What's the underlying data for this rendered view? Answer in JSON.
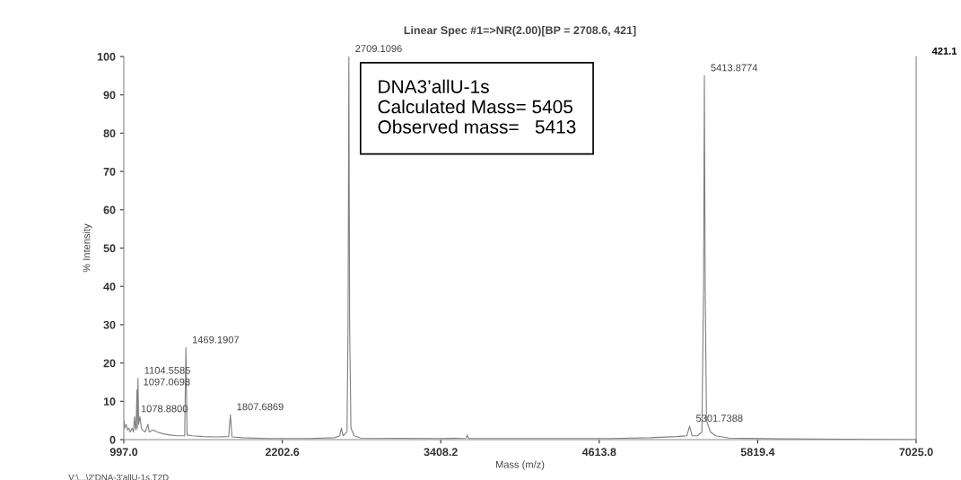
{
  "chart_data": {
    "type": "line",
    "title": "Linear Spec #1=>NR(2.00)[BP = 2708.6, 421]",
    "xlabel": "Mass (m/z)",
    "ylabel": "% Intensity",
    "xlim": [
      997.0,
      7025.0
    ],
    "xticks": [
      {
        "value": 997.0,
        "label": "997.0"
      },
      {
        "value": 2202.6,
        "label": "2202.6"
      },
      {
        "value": 3408.2,
        "label": "3408.2"
      },
      {
        "value": 4613.8,
        "label": "4613.8"
      },
      {
        "value": 5819.4,
        "label": "5819.4"
      },
      {
        "value": 7025.0,
        "label": "7025.0"
      }
    ],
    "ylim": [
      0,
      100
    ],
    "yticks": [
      0,
      10,
      20,
      30,
      40,
      50,
      60,
      70,
      80,
      90,
      100
    ],
    "grid": false,
    "marker": "none",
    "line_style": "solid",
    "series": [
      {
        "color": "#808080",
        "x": [
          997,
          1005,
          1015,
          1025,
          1035,
          1045,
          1060,
          1070,
          1078.88,
          1085,
          1090,
          1097.07,
          1100,
          1104.56,
          1110,
          1120,
          1130,
          1140,
          1160,
          1180,
          1190,
          1220,
          1250,
          1300,
          1350,
          1400,
          1460,
          1469.19,
          1478,
          1520,
          1600,
          1700,
          1795,
          1807.69,
          1820,
          1900,
          2100,
          2400,
          2600,
          2640,
          2652,
          2665,
          2695,
          2703,
          2709.11,
          2715,
          2725,
          2750,
          2800,
          3400,
          3600,
          3610,
          3620,
          4700,
          5000,
          5200,
          5280,
          5301.74,
          5320,
          5360,
          5395,
          5408,
          5413.88,
          5420,
          5430,
          5460,
          5500,
          5600,
          6000,
          7025
        ],
        "values": [
          5,
          3,
          4,
          2.5,
          3,
          2,
          3,
          2,
          6,
          3,
          2.5,
          13,
          3,
          16,
          4,
          6,
          3,
          2.5,
          2,
          4,
          2,
          2.5,
          2,
          1.5,
          1.2,
          1,
          1,
          24,
          1.2,
          1,
          0.8,
          0.7,
          0.8,
          6.5,
          0.7,
          0.5,
          0.3,
          0.3,
          0.5,
          1,
          3,
          1,
          2,
          30,
          100,
          30,
          3,
          1,
          0.4,
          0.3,
          0.4,
          1.2,
          0.3,
          0.3,
          0.5,
          0.8,
          1,
          3.5,
          1,
          1,
          2,
          40,
          95,
          40,
          5,
          2,
          1,
          0.4,
          0.2,
          0
        ]
      }
    ],
    "annotations": [
      "DNA3’allU-1s\nCalculated Mass= 5405\nObserved mass=   5413",
      "421.1",
      "V:\\...\\2'DNA-3'allU-1s.T2D",
      {
        "text": "2709.1096",
        "x": 2709.11,
        "y": 100
      },
      {
        "text": "5413.8774",
        "x": 5413.88,
        "y": 95
      },
      {
        "text": "1469.1907",
        "x": 1469.19,
        "y": 24
      },
      {
        "text": "1104.5585",
        "x": 1104.56,
        "y": 16
      },
      {
        "text": "1097.0693",
        "x": 1097.07,
        "y": 13
      },
      {
        "text": "1078.8800",
        "x": 1078.88,
        "y": 6
      },
      {
        "text": "1807.6869",
        "x": 1807.69,
        "y": 6.5
      },
      {
        "text": "5301.7388",
        "x": 5301.74,
        "y": 3.5
      }
    ]
  }
}
